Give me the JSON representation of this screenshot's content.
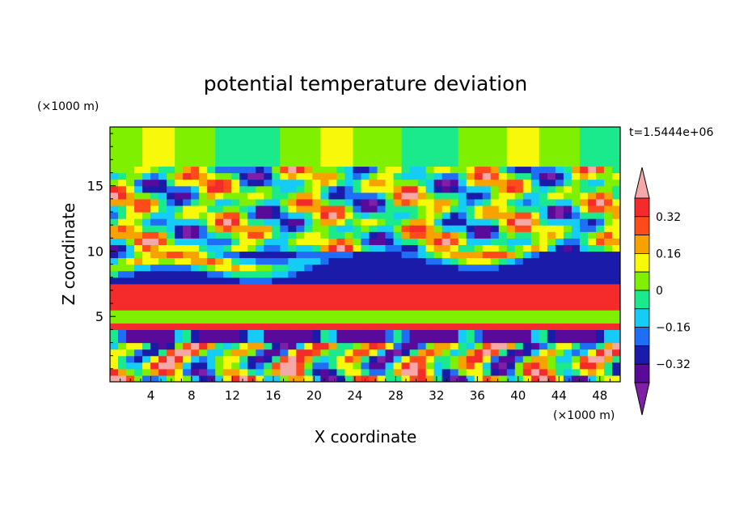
{
  "chart_data": {
    "type": "heatmap",
    "title": "potential temperature deviation",
    "xlabel": "X coordinate",
    "ylabel": "Z coordinate",
    "x_units": "(×1000 m)",
    "y_units": "(×1000 m)",
    "time_label": "t=1.5444e+06",
    "xlim": [
      0,
      50
    ],
    "ylim": [
      0,
      19.5
    ],
    "x_ticks": [
      4,
      8,
      12,
      16,
      20,
      24,
      28,
      32,
      36,
      40,
      44,
      48
    ],
    "y_ticks": [
      5,
      10,
      15
    ],
    "colorbar": {
      "levels": [
        -0.4,
        -0.32,
        -0.24,
        -0.16,
        -0.08,
        0,
        0.08,
        0.16,
        0.24,
        0.32,
        0.4
      ],
      "tick_labels": [
        "0.32",
        "0.16",
        "0",
        "−0.16",
        "−0.32"
      ],
      "tick_values": [
        0.32,
        0.16,
        0,
        -0.16,
        -0.32
      ],
      "colors": [
        "#7f1fa8",
        "#5a0a9a",
        "#1b1baa",
        "#1f6ef5",
        "#14ccf5",
        "#1bea8c",
        "#7ff000",
        "#f8f80a",
        "#f8a200",
        "#ff4a1a",
        "#f52a2a",
        "#f5a8a8"
      ],
      "extend": "both"
    },
    "bands": [
      {
        "z": [
          0,
          3.2
        ],
        "pattern": "turbulent"
      },
      {
        "z": [
          3.2,
          4.2
        ],
        "level": -0.36
      },
      {
        "z": [
          4.2,
          4.7
        ],
        "level": 0.36
      },
      {
        "z": [
          4.7,
          5.4
        ],
        "level": 0.05
      },
      {
        "z": [
          5.4,
          6.0
        ],
        "level": 0.36
      },
      {
        "z": [
          6.0,
          7.4
        ],
        "level": 0.36
      },
      {
        "z": [
          7.4,
          10.0
        ],
        "pattern": "mixed-purple"
      },
      {
        "z": [
          10.0,
          16.5
        ],
        "pattern": "mixed"
      },
      {
        "z": [
          16.5,
          19.5
        ],
        "level": 0.06
      }
    ]
  }
}
